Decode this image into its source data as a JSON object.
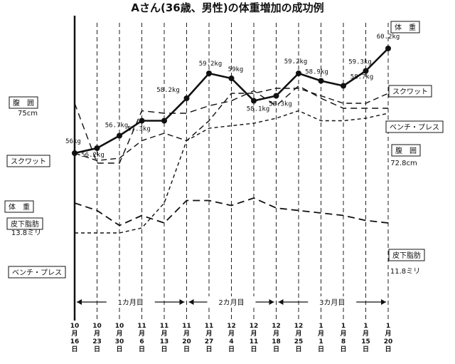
{
  "chart_data": {
    "type": "line",
    "title": "Aさん(36歳、男性)の体重増加の成功例",
    "x": [
      [
        "10",
        "月",
        "16",
        "日"
      ],
      [
        "10",
        "月",
        "23",
        "日"
      ],
      [
        "10",
        "月",
        "30",
        "日"
      ],
      [
        "11",
        "月",
        "6",
        "日"
      ],
      [
        "11",
        "月",
        "13",
        "日"
      ],
      [
        "11",
        "月",
        "20",
        "日"
      ],
      [
        "11",
        "月",
        "27",
        "日"
      ],
      [
        "12",
        "月",
        "4",
        "日"
      ],
      [
        "12",
        "月",
        "11",
        "日"
      ],
      [
        "12",
        "月",
        "18",
        "日"
      ],
      [
        "12",
        "月",
        "25",
        "日"
      ],
      [
        "1",
        "月",
        "1",
        "日"
      ],
      [
        "1",
        "月",
        "8",
        "日"
      ],
      [
        "1",
        "月",
        "15",
        "日"
      ],
      [
        "1",
        "月",
        "20",
        "日"
      ]
    ],
    "periods": [
      "1カ月目",
      "2カ月目",
      "3カ月目"
    ],
    "series": [
      {
        "name": "体　重",
        "unit": "kg",
        "values": [
          56.0,
          56.2,
          56.7,
          57.3,
          57.3,
          58.2,
          59.2,
          59.0,
          58.1,
          58.3,
          59.2,
          58.9,
          58.7,
          59.3,
          60.2
        ],
        "labels": [
          "56kg",
          "56.2kg",
          "56.7kg",
          "57.3kg",
          "",
          "58.2kg",
          "59.2kg",
          "59kg",
          "58.1kg",
          "58.3kg",
          "59.2kg",
          "58.9kg",
          "58.7kg",
          "59.3kg",
          "60.2kg"
        ],
        "start_label": "体　重",
        "end_label": "体　重"
      },
      {
        "name": "スクワット",
        "values": [
          56.0,
          55.7,
          55.8,
          56.5,
          56.8,
          56.5,
          57.3,
          58.4,
          58.4,
          58.6,
          58.6,
          58.3,
          58.0,
          58.0,
          58.4
        ],
        "start_label": "スクワット",
        "end_label": "スクワット"
      },
      {
        "name": "腹　囲",
        "values": [
          58.0,
          55.6,
          55.6,
          57.7,
          57.6,
          57.6,
          57.9,
          58.1,
          58.5,
          57.9,
          58.7,
          58.2,
          57.8,
          57.8,
          57.8
        ],
        "start_label": "腹　囲",
        "start_value": "75cm",
        "end_label": "腹　囲",
        "end_value": "72.8cm"
      },
      {
        "name": "ベンチ・プレス",
        "values": [
          52.8,
          52.8,
          52.8,
          53.0,
          54.0,
          56.5,
          57.0,
          57.1,
          57.2,
          57.4,
          57.7,
          57.3,
          57.3,
          57.4,
          57.6
        ],
        "start_label": "ベンチ・プレス",
        "end_label": "ベンチ・プレス"
      },
      {
        "name": "皮下脂肪",
        "values": [
          54.0,
          53.7,
          53.1,
          53.5,
          53.2,
          54.1,
          54.1,
          53.9,
          54.2,
          53.8,
          53.7,
          53.6,
          53.5,
          53.3,
          53.2
        ],
        "start_label": "皮下脂肪",
        "start_value": "13.8ミリ",
        "end_label": "皮下脂肪",
        "end_value": "11.8ミリ"
      }
    ],
    "ylim": [
      51.0,
      61.0
    ],
    "grid": "vertical-dashed",
    "xlabel": "",
    "ylabel": ""
  }
}
